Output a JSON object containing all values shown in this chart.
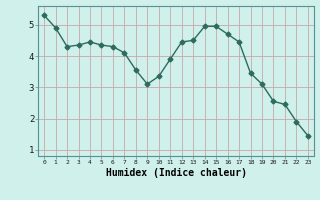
{
  "x": [
    0,
    1,
    2,
    3,
    4,
    5,
    6,
    7,
    8,
    9,
    10,
    11,
    12,
    13,
    14,
    15,
    16,
    17,
    18,
    19,
    20,
    21,
    22,
    23
  ],
  "y": [
    5.3,
    4.9,
    4.3,
    4.35,
    4.45,
    4.35,
    4.3,
    4.1,
    3.55,
    3.1,
    3.35,
    3.9,
    4.45,
    4.5,
    4.95,
    4.95,
    4.7,
    4.45,
    3.45,
    3.1,
    2.55,
    2.45,
    1.9,
    1.45
  ],
  "line_color": "#2d6b5e",
  "marker": "D",
  "marker_size": 2.5,
  "bg_color": "#cff0eb",
  "plot_bg_color": "#cff0eb",
  "grid_color": "#c9a8a8",
  "xlabel": "Humidex (Indice chaleur)",
  "xlabel_fontsize": 7,
  "yticks": [
    1,
    2,
    3,
    4,
    5
  ],
  "xticks": [
    0,
    1,
    2,
    3,
    4,
    5,
    6,
    7,
    8,
    9,
    10,
    11,
    12,
    13,
    14,
    15,
    16,
    17,
    18,
    19,
    20,
    21,
    22,
    23
  ],
  "ylim": [
    0.8,
    5.6
  ],
  "xlim": [
    -0.5,
    23.5
  ]
}
